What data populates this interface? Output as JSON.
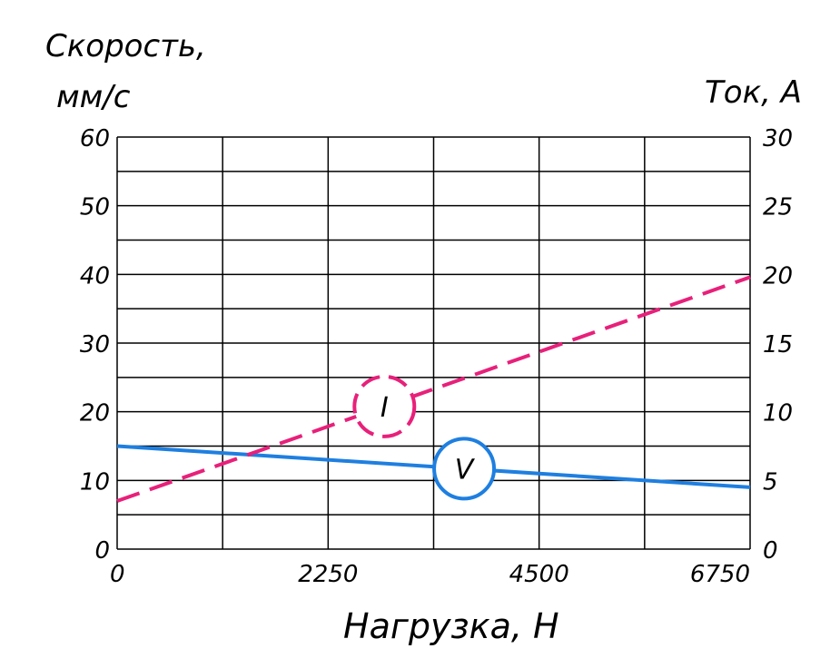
{
  "chart_data": {
    "type": "line",
    "xlabel": "Нагрузка, Н",
    "ylabel_line1": "Скорость,",
    "ylabel_line2": "мм/с",
    "y2label": "Ток, А",
    "xlim": [
      0,
      6750
    ],
    "ylim": [
      0,
      60
    ],
    "y2lim": [
      0,
      30
    ],
    "x_ticks": [
      "0",
      "2250",
      "4500",
      "6750"
    ],
    "y_ticks": [
      "0",
      "10",
      "20",
      "30",
      "40",
      "50",
      "60"
    ],
    "y2_ticks": [
      "0",
      "5",
      "10",
      "15",
      "20",
      "25",
      "30"
    ],
    "x_grid_divisions": 6,
    "y_grid_divisions": 12,
    "grid": true,
    "series": [
      {
        "name": "V",
        "axis": "left",
        "color": "#1e7fe0",
        "dash": "solid",
        "x": [
          0,
          6750
        ],
        "y": [
          15,
          9
        ],
        "marker_x": 3700
      },
      {
        "name": "I",
        "axis": "right",
        "color": "#e8207a",
        "dash": "dashed",
        "x": [
          0,
          6750
        ],
        "y": [
          3.5,
          19.8
        ],
        "marker_x": 2850
      }
    ]
  }
}
